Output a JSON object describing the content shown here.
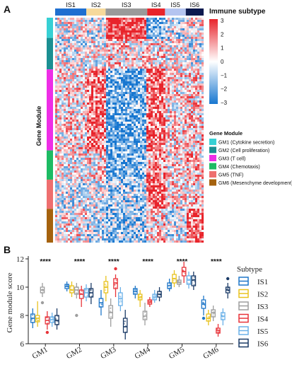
{
  "panel_a": {
    "label": "A",
    "subtype_title": "Immune subtype",
    "subtypes": [
      {
        "name": "IS1",
        "color": "#1f6fd0",
        "span": 0.21
      },
      {
        "name": "IS2",
        "color": "#f6d99b",
        "span": 0.13
      },
      {
        "name": "IS3",
        "color": "#9a9a9a",
        "span": 0.28
      },
      {
        "name": "IS4",
        "color": "#e8242b",
        "span": 0.12
      },
      {
        "name": "IS5",
        "color": "#b4c4f0",
        "span": 0.14
      },
      {
        "name": "IS6",
        "color": "#0d1a4f",
        "span": 0.12
      }
    ],
    "module_axis_label": "Gene Module",
    "modules": [
      {
        "id": "GM1",
        "legend": "GM1 (Cytokine secretion)",
        "color": "#37d0d4",
        "span": 0.09
      },
      {
        "id": "GM2",
        "legend": "GM2 (Cell proliferation)",
        "color": "#1b8f92",
        "span": 0.14
      },
      {
        "id": "GM3",
        "legend": "GM3 (T cell)",
        "color": "#ee2ee6",
        "span": 0.36
      },
      {
        "id": "GM4",
        "legend": "GM4 (Chemotaxis)",
        "color": "#1dbb63",
        "span": 0.13
      },
      {
        "id": "GM5",
        "legend": "GM5 (TNF)",
        "color": "#ee6f6f",
        "span": 0.13
      },
      {
        "id": "GM6",
        "legend": "GM6 (Mesenchyme development)",
        "color": "#a5620e",
        "span": 0.15
      }
    ],
    "module_legend_title": "Gene Module",
    "colorbar_ticks": [
      "3",
      "2",
      "1",
      "0",
      "−1",
      "−2",
      "−3"
    ],
    "colorbar_range": [
      -3,
      3
    ],
    "colors": {
      "high": "#e8242b",
      "mid": "#ffffff",
      "low": "#1877d0"
    }
  },
  "chart_data": {
    "type": "boxplot",
    "panel_label": "B",
    "ylabel": "Gene module score",
    "ylim": [
      6,
      12.2
    ],
    "yticks": [
      6,
      8,
      10,
      12
    ],
    "categories": [
      "GM1",
      "GM2",
      "GM3",
      "GM4",
      "GM5",
      "GM6"
    ],
    "significance": [
      "****",
      "****",
      "****",
      "****",
      "****",
      "****"
    ],
    "legend_title": "Subtype",
    "legend_position": "right",
    "series": [
      {
        "name": "IS1",
        "color": "#1f77c8",
        "boxes": [
          {
            "min": 7.1,
            "q1": 7.5,
            "median": 7.8,
            "q3": 8.1,
            "max": 8.5,
            "outliers": []
          },
          {
            "min": 9.7,
            "q1": 9.9,
            "median": 10.05,
            "q3": 10.2,
            "max": 10.4,
            "outliers": []
          },
          {
            "min": 8.0,
            "q1": 8.6,
            "median": 8.9,
            "q3": 9.2,
            "max": 9.8,
            "outliers": []
          },
          {
            "min": 9.2,
            "q1": 9.5,
            "median": 9.7,
            "q3": 9.9,
            "max": 10.1,
            "outliers": []
          },
          {
            "min": 9.7,
            "q1": 9.9,
            "median": 10.1,
            "q3": 10.3,
            "max": 10.6,
            "outliers": []
          },
          {
            "min": 8.0,
            "q1": 8.5,
            "median": 8.8,
            "q3": 9.1,
            "max": 9.4,
            "outliers": [
              7.8
            ]
          }
        ]
      },
      {
        "name": "IS2",
        "color": "#e8c21f",
        "boxes": [
          {
            "min": 7.2,
            "q1": 7.55,
            "median": 7.8,
            "q3": 8.0,
            "max": 9.0,
            "outliers": []
          },
          {
            "min": 9.3,
            "q1": 9.6,
            "median": 9.8,
            "q3": 10.1,
            "max": 10.4,
            "outliers": []
          },
          {
            "min": 9.0,
            "q1": 9.6,
            "median": 10.0,
            "q3": 10.4,
            "max": 10.8,
            "outliers": []
          },
          {
            "min": 8.6,
            "q1": 9.1,
            "median": 9.3,
            "q3": 9.5,
            "max": 9.8,
            "outliers": []
          },
          {
            "min": 10.0,
            "q1": 10.3,
            "median": 10.6,
            "q3": 10.9,
            "max": 11.2,
            "outliers": []
          },
          {
            "min": 7.3,
            "q1": 7.6,
            "median": 7.8,
            "q3": 8.1,
            "max": 8.4,
            "outliers": []
          }
        ]
      },
      {
        "name": "IS3",
        "color": "#9e9e9e",
        "boxes": [
          {
            "min": 9.3,
            "q1": 9.6,
            "median": 9.8,
            "q3": 10.0,
            "max": 10.3,
            "outliers": [
              8.9
            ]
          },
          {
            "min": 9.2,
            "q1": 9.5,
            "median": 9.8,
            "q3": 10.0,
            "max": 10.3,
            "outliers": [
              8.0
            ]
          },
          {
            "min": 7.2,
            "q1": 7.8,
            "median": 8.2,
            "q3": 8.7,
            "max": 9.2,
            "outliers": []
          },
          {
            "min": 7.3,
            "q1": 7.7,
            "median": 7.95,
            "q3": 8.3,
            "max": 8.9,
            "outliers": []
          },
          {
            "min": 10.0,
            "q1": 10.2,
            "median": 10.35,
            "q3": 10.5,
            "max": 10.8,
            "outliers": []
          },
          {
            "min": 7.6,
            "q1": 7.9,
            "median": 8.2,
            "q3": 8.4,
            "max": 8.7,
            "outliers": []
          }
        ]
      },
      {
        "name": "IS4",
        "color": "#e8343a",
        "boxes": [
          {
            "min": 7.0,
            "q1": 7.4,
            "median": 7.65,
            "q3": 7.9,
            "max": 8.3,
            "outliers": [
              6.8
            ]
          },
          {
            "min": 8.6,
            "q1": 9.2,
            "median": 9.5,
            "q3": 9.8,
            "max": 10.1,
            "outliers": []
          },
          {
            "min": 9.3,
            "q1": 9.9,
            "median": 10.3,
            "q3": 10.6,
            "max": 10.9,
            "outliers": [
              11.3
            ]
          },
          {
            "min": 8.6,
            "q1": 8.8,
            "median": 8.95,
            "q3": 9.1,
            "max": 9.3,
            "outliers": []
          },
          {
            "min": 10.3,
            "q1": 10.8,
            "median": 11.1,
            "q3": 11.4,
            "max": 11.8,
            "outliers": []
          },
          {
            "min": 6.5,
            "q1": 6.75,
            "median": 6.95,
            "q3": 7.1,
            "max": 7.4,
            "outliers": []
          }
        ]
      },
      {
        "name": "IS5",
        "color": "#6ab0e8",
        "boxes": [
          {
            "min": 7.2,
            "q1": 7.5,
            "median": 7.7,
            "q3": 7.9,
            "max": 8.2,
            "outliers": []
          },
          {
            "min": 9.0,
            "q1": 9.3,
            "median": 9.6,
            "q3": 9.9,
            "max": 10.2,
            "outliers": []
          },
          {
            "min": 8.3,
            "q1": 8.7,
            "median": 9.2,
            "q3": 9.6,
            "max": 10.0,
            "outliers": []
          },
          {
            "min": 8.9,
            "q1": 9.1,
            "median": 9.3,
            "q3": 9.5,
            "max": 9.8,
            "outliers": []
          },
          {
            "min": 9.9,
            "q1": 10.2,
            "median": 10.5,
            "q3": 10.8,
            "max": 11.1,
            "outliers": []
          },
          {
            "min": 7.3,
            "q1": 7.7,
            "median": 7.95,
            "q3": 8.2,
            "max": 8.5,
            "outliers": []
          }
        ]
      },
      {
        "name": "IS6",
        "color": "#1a3a66",
        "boxes": [
          {
            "min": 7.0,
            "q1": 7.35,
            "median": 7.65,
            "q3": 8.0,
            "max": 8.5,
            "outliers": []
          },
          {
            "min": 8.8,
            "q1": 9.3,
            "median": 9.6,
            "q3": 9.9,
            "max": 10.3,
            "outliers": []
          },
          {
            "min": 6.3,
            "q1": 6.8,
            "median": 7.2,
            "q3": 7.8,
            "max": 8.4,
            "outliers": []
          },
          {
            "min": 9.0,
            "q1": 9.3,
            "median": 9.5,
            "q3": 9.7,
            "max": 10.0,
            "outliers": []
          },
          {
            "min": 9.8,
            "q1": 10.1,
            "median": 10.5,
            "q3": 10.8,
            "max": 11.1,
            "outliers": []
          },
          {
            "min": 9.2,
            "q1": 9.6,
            "median": 9.8,
            "q3": 10.0,
            "max": 10.3,
            "outliers": [
              10.6
            ]
          }
        ]
      }
    ]
  }
}
